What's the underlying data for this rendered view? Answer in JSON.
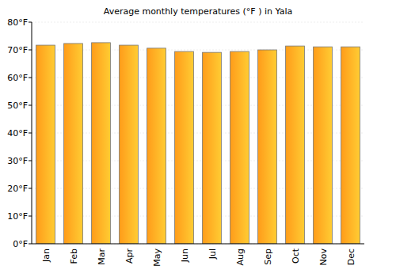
{
  "chart_data": {
    "type": "bar",
    "title": "Average monthly temperatures (°F ) in Yala",
    "categories": [
      "Jan",
      "Feb",
      "Mar",
      "Apr",
      "May",
      "Jun",
      "Jul",
      "Aug",
      "Sep",
      "Oct",
      "Nov",
      "Dec"
    ],
    "values": [
      71.7,
      72.3,
      72.6,
      71.7,
      70.6,
      69.4,
      69.1,
      69.4,
      70.0,
      71.4,
      71.1,
      71.1
    ],
    "color": "#ff9c1a",
    "ylim": [
      0,
      80
    ],
    "yticks": [
      {
        "value": 0,
        "label": "0°F"
      },
      {
        "value": 10,
        "label": "10°F"
      },
      {
        "value": 20,
        "label": "20°F"
      },
      {
        "value": 30,
        "label": "30°F"
      },
      {
        "value": 40,
        "label": "40°F"
      },
      {
        "value": 50,
        "label": "50°F"
      },
      {
        "value": 60,
        "label": "60°F"
      },
      {
        "value": 70,
        "label": "70°F"
      },
      {
        "value": 80,
        "label": "80°F"
      }
    ],
    "grid": true
  }
}
